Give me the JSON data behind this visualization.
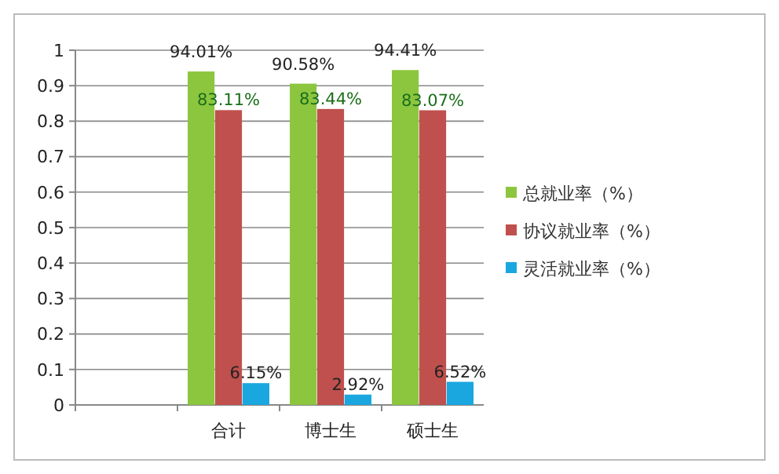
{
  "chart_data": {
    "type": "bar",
    "categories": [
      null,
      "合计",
      "博士生",
      "硕士生"
    ],
    "series": [
      {
        "name": "总就业率（%）",
        "color": "#8cc63e",
        "values": [
          null,
          0.9401,
          0.9058,
          0.9441
        ],
        "value_labels": [
          null,
          "94.01%",
          "90.58%",
          "94.41%"
        ]
      },
      {
        "name": "协议就业率（%）",
        "color": "#c0504d",
        "values": [
          null,
          0.8311,
          0.8344,
          0.8307
        ],
        "value_labels": [
          null,
          "83.11%",
          "83.44%",
          "83.07%"
        ]
      },
      {
        "name": "灵活就业率（%）",
        "color": "#1aa7e0",
        "values": [
          null,
          0.0615,
          0.0292,
          0.0652
        ],
        "value_labels": [
          null,
          "6.15%",
          "2.92%",
          "6.52%"
        ]
      }
    ],
    "ylim": [
      0,
      1
    ],
    "yticks": [
      0,
      0.1,
      0.2,
      0.3,
      0.4,
      0.5,
      0.6,
      0.7,
      0.8,
      0.9,
      1
    ],
    "grid": "y",
    "legend": "right"
  }
}
